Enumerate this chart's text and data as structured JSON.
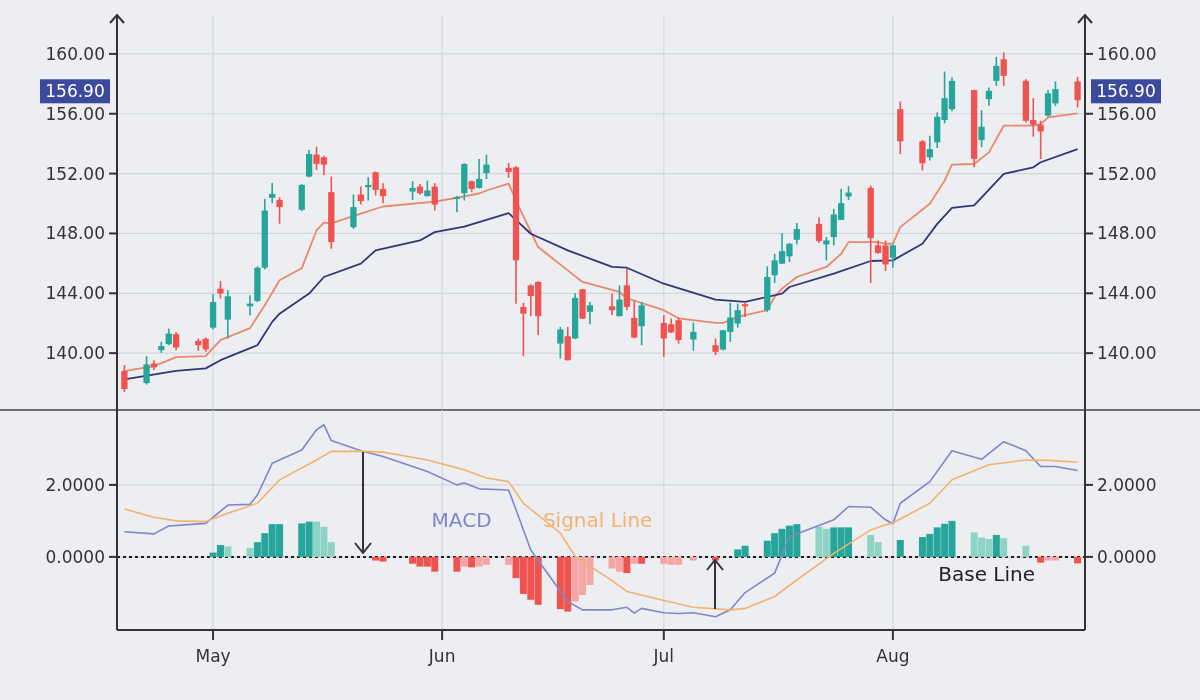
{
  "chart_data": [
    {
      "type": "candlestick",
      "tick_labels": "y",
      "grid": true,
      "xlim": [
        "--04-18",
        "--08-27"
      ],
      "xticks": [
        {
          "value": "--05-01",
          "label": null
        },
        {
          "value": "--06-01",
          "label": null
        },
        {
          "value": "--07-01",
          "label": null
        },
        {
          "value": "--08-01",
          "label": null
        }
      ],
      "ylim": [
        136.2,
        162.6
      ],
      "yticks": [
        {
          "value": 140,
          "label": "140.00"
        },
        {
          "value": 144,
          "label": "144.00"
        },
        {
          "value": 148,
          "label": "148.00"
        },
        {
          "value": 152,
          "label": "152.00"
        },
        {
          "value": 156,
          "label": "156.00"
        },
        {
          "value": 160,
          "label": "160.00"
        }
      ],
      "y2lim": [
        136.2,
        162.6
      ],
      "y2ticks": [
        {
          "value": 140,
          "label": "140.00"
        },
        {
          "value": 144,
          "label": "144.00"
        },
        {
          "value": 148,
          "label": "148.00"
        },
        {
          "value": 152,
          "label": "152.00"
        },
        {
          "value": 156,
          "label": "156.00"
        },
        {
          "value": 160,
          "label": "160.00"
        }
      ],
      "x": [
        "--04-19",
        "--04-22",
        "--04-23",
        "--04-24",
        "--04-25",
        "--04-26",
        "--04-29",
        "--04-30",
        "--05-01",
        "--05-02",
        "--05-03",
        "--05-06",
        "--05-07",
        "--05-08",
        "--05-09",
        "--05-10",
        "--05-13",
        "--05-14",
        "--05-15",
        "--05-16",
        "--05-17",
        "--05-20",
        "--05-21",
        "--05-22",
        "--05-23",
        "--05-24",
        "--05-28",
        "--05-29",
        "--05-30",
        "--05-31",
        "--06-03",
        "--06-04",
        "--06-05",
        "--06-06",
        "--06-07",
        "--06-10",
        "--06-11",
        "--06-12",
        "--06-13",
        "--06-14",
        "--06-17",
        "--06-18",
        "--06-19",
        "--06-20",
        "--06-21",
        "--06-24",
        "--06-25",
        "--06-26",
        "--06-27",
        "--06-28",
        "--07-01",
        "--07-02",
        "--07-03",
        "--07-05",
        "--07-08",
        "--07-09",
        "--07-10",
        "--07-11",
        "--07-12",
        "--07-15",
        "--07-16",
        "--07-17",
        "--07-18",
        "--07-19",
        "--07-22",
        "--07-23",
        "--07-24",
        "--07-25",
        "--07-26",
        "--07-29",
        "--07-30",
        "--07-31",
        "--08-01",
        "--08-02",
        "--08-05",
        "--08-06",
        "--08-07",
        "--08-08",
        "--08-09",
        "--08-12",
        "--08-13",
        "--08-14",
        "--08-15",
        "--08-16",
        "--08-19",
        "--08-20",
        "--08-21",
        "--08-22",
        "--08-23",
        "--08-26"
      ],
      "ohlc": [
        [
          138.8,
          139.2,
          137.4,
          137.6
        ],
        [
          138.0,
          139.8,
          137.9,
          139.25
        ],
        [
          139.3,
          139.53,
          138.87,
          139.05
        ],
        [
          140.2,
          140.76,
          140.02,
          140.47
        ],
        [
          140.6,
          141.64,
          140.53,
          141.31
        ],
        [
          141.27,
          141.42,
          140.2,
          140.38
        ],
        [
          140.82,
          140.98,
          140.16,
          140.53
        ],
        [
          140.96,
          141.05,
          140.09,
          140.25
        ],
        [
          141.7,
          143.93,
          141.6,
          143.42
        ],
        [
          144.31,
          144.82,
          143.64,
          143.98
        ],
        [
          142.24,
          144.2,
          140.98,
          143.8
        ],
        [
          143.13,
          143.87,
          142.53,
          143.31
        ],
        [
          143.49,
          145.8,
          143.4,
          145.71
        ],
        [
          145.71,
          150.31,
          145.6,
          149.53
        ],
        [
          150.38,
          151.38,
          150.02,
          150.64
        ],
        [
          150.24,
          150.42,
          148.65,
          149.76
        ],
        [
          149.58,
          151.3,
          149.49,
          151.24
        ],
        [
          151.8,
          153.58,
          151.75,
          153.31
        ],
        [
          153.27,
          153.8,
          152.24,
          152.65
        ],
        [
          153.09,
          153.2,
          151.9,
          152.6
        ],
        [
          150.76,
          151.8,
          146.98,
          147.42
        ],
        [
          148.42,
          150.6,
          148.3,
          149.76
        ],
        [
          150.6,
          151.13,
          149.93,
          150.16
        ],
        [
          151.09,
          151.76,
          150.2,
          151.24
        ],
        [
          152.09,
          152.15,
          150.53,
          150.91
        ],
        [
          150.98,
          151.36,
          150.02,
          150.49
        ],
        [
          150.8,
          151.49,
          150.24,
          151.04
        ],
        [
          151.13,
          151.31,
          150.58,
          150.69
        ],
        [
          150.49,
          151.53,
          150.47,
          150.87
        ],
        [
          151.13,
          151.36,
          149.53,
          149.93
        ],
        [
          150.31,
          150.5,
          149.42,
          150.44
        ],
        [
          150.69,
          152.7,
          150.2,
          152.64
        ],
        [
          151.49,
          151.53,
          150.76,
          150.98
        ],
        [
          151.04,
          152.98,
          151.0,
          151.64
        ],
        [
          152.04,
          153.27,
          151.64,
          152.6
        ],
        [
          152.38,
          152.71,
          151.71,
          152.11
        ],
        [
          152.42,
          152.5,
          143.3,
          146.2
        ],
        [
          143.09,
          143.36,
          139.8,
          142.64
        ],
        [
          144.53,
          144.6,
          142.47,
          143.82
        ],
        [
          144.76,
          144.8,
          141.2,
          142.47
        ],
        [
          140.64,
          141.76,
          139.64,
          141.58
        ],
        [
          141.13,
          141.76,
          139.5,
          139.53
        ],
        [
          140.98,
          144.0,
          140.95,
          143.69
        ],
        [
          144.27,
          144.3,
          142.28,
          142.31
        ],
        [
          142.76,
          143.42,
          141.93,
          143.2
        ],
        [
          143.13,
          143.98,
          142.53,
          142.87
        ],
        [
          142.47,
          144.53,
          142.45,
          143.58
        ],
        [
          144.53,
          145.64,
          142.87,
          143.09
        ],
        [
          142.36,
          143.53,
          141.0,
          141.04
        ],
        [
          141.8,
          143.42,
          140.53,
          143.2
        ],
        [
          142.02,
          142.53,
          139.76,
          140.98
        ],
        [
          141.93,
          142.31,
          141.35,
          141.38
        ],
        [
          142.2,
          142.38,
          140.64,
          140.87
        ],
        [
          140.91,
          142.04,
          140.16,
          141.42
        ],
        [
          140.53,
          140.98,
          139.87,
          140.09
        ],
        [
          140.24,
          141.55,
          140.2,
          141.53
        ],
        [
          141.42,
          143.36,
          140.76,
          142.38
        ],
        [
          141.98,
          143.31,
          141.71,
          142.87
        ],
        [
          143.27,
          143.42,
          142.42,
          143.13
        ],
        [
          142.87,
          145.8,
          142.76,
          145.09
        ],
        [
          145.2,
          146.64,
          144.69,
          146.2
        ],
        [
          145.98,
          148.02,
          145.95,
          146.82
        ],
        [
          146.47,
          147.35,
          146.09,
          147.31
        ],
        [
          147.58,
          148.69,
          147.27,
          148.29
        ],
        [
          148.64,
          149.09,
          147.36,
          147.49
        ],
        [
          147.27,
          147.76,
          146.2,
          147.53
        ],
        [
          147.76,
          149.64,
          147.2,
          149.27
        ],
        [
          148.91,
          150.98,
          148.9,
          150.02
        ],
        [
          150.47,
          151.16,
          150.24,
          150.73
        ],
        [
          151.04,
          151.2,
          144.69,
          147.69
        ],
        [
          147.2,
          147.53,
          146.64,
          146.69
        ],
        [
          147.2,
          147.53,
          145.49,
          145.93
        ],
        [
          146.38,
          147.25,
          145.71,
          147.2
        ],
        [
          156.31,
          156.82,
          153.31,
          154.16
        ],
        [
          154.16,
          154.24,
          152.2,
          152.69
        ],
        [
          153.09,
          154.53,
          152.87,
          153.64
        ],
        [
          154.09,
          156.09,
          153.71,
          155.8
        ],
        [
          155.58,
          158.82,
          155.36,
          157.04
        ],
        [
          156.31,
          158.42,
          156.16,
          158.2
        ],
        [
          157.58,
          157.6,
          152.42,
          152.98
        ],
        [
          154.24,
          156.24,
          153.76,
          155.13
        ],
        [
          156.98,
          157.76,
          156.53,
          157.53
        ],
        [
          158.2,
          159.8,
          157.87,
          159.2
        ],
        [
          159.64,
          160.09,
          157.87,
          158.53
        ],
        [
          158.2,
          158.31,
          155.42,
          155.53
        ],
        [
          155.58,
          157.04,
          154.47,
          155.27
        ],
        [
          155.27,
          155.53,
          152.98,
          154.82
        ],
        [
          155.87,
          157.58,
          155.8,
          157.36
        ],
        [
          156.69,
          158.16,
          156.53,
          157.64
        ],
        [
          158.16,
          158.47,
          156.42,
          156.9
        ]
      ],
      "series": [
        {
          "type": "line",
          "color": "#e8896b",
          "x": [
            "--04-19",
            "--04-23",
            "--04-26",
            "--04-30",
            "--05-02",
            "--05-06",
            "--05-08",
            "--05-10",
            "--05-13",
            "--05-15",
            "--05-16",
            "--05-17",
            "--05-21",
            "--05-24",
            "--05-31",
            "--06-04",
            "--06-06",
            "--06-07",
            "--06-10",
            "--06-11",
            "--06-14",
            "--06-18",
            "--06-20",
            "--06-25",
            "--06-26",
            "--07-01",
            "--07-03",
            "--07-08",
            "--07-09",
            "--07-11",
            "--07-15",
            "--07-16",
            "--07-17",
            "--07-19",
            "--07-23",
            "--07-25",
            "--07-26",
            "--07-30",
            "--07-31",
            "--08-01",
            "--08-02",
            "--08-06",
            "--08-08",
            "--08-09",
            "--08-12",
            "--08-14",
            "--08-15",
            "--08-16",
            "--08-20",
            "--08-21",
            "--08-22",
            "--08-26"
          ],
          "values": [
            138.8,
            139.13,
            139.73,
            139.8,
            140.87,
            141.67,
            143.2,
            144.87,
            145.67,
            148.2,
            148.73,
            148.67,
            149.33,
            149.8,
            150.13,
            150.47,
            150.67,
            150.87,
            151.33,
            150.2,
            147.09,
            145.53,
            144.76,
            144.09,
            143.67,
            142.87,
            142.33,
            142.02,
            142.02,
            142.42,
            142.87,
            143.76,
            144.31,
            145.09,
            145.76,
            146.64,
            147.42,
            147.42,
            147.31,
            147.31,
            148.42,
            149.98,
            151.53,
            152.6,
            152.64,
            153.42,
            154.31,
            155.2,
            155.2,
            155.31,
            155.76,
            156.02
          ]
        },
        {
          "type": "line",
          "color": "#2f3778",
          "x": [
            "--04-19",
            "--04-26",
            "--04-30",
            "--05-02",
            "--05-07",
            "--05-09",
            "--05-10",
            "--05-14",
            "--05-16",
            "--05-21",
            "--05-23",
            "--05-29",
            "--05-31",
            "--06-04",
            "--06-10",
            "--06-13",
            "--06-18",
            "--06-24",
            "--06-26",
            "--07-01",
            "--07-08",
            "--07-12",
            "--07-17",
            "--07-18",
            "--07-24",
            "--07-29",
            "--08-01",
            "--08-05",
            "--08-07",
            "--08-09",
            "--08-12",
            "--08-16",
            "--08-20",
            "--08-21",
            "--08-26"
          ],
          "values": [
            138.25,
            138.82,
            138.98,
            139.53,
            140.53,
            142.09,
            142.64,
            143.98,
            145.09,
            145.98,
            146.87,
            147.53,
            148.09,
            148.45,
            149.36,
            147.98,
            146.87,
            145.76,
            145.71,
            144.64,
            143.58,
            143.42,
            143.98,
            144.42,
            145.31,
            146.16,
            146.2,
            147.31,
            148.64,
            149.71,
            149.87,
            151.98,
            152.42,
            152.76,
            153.64
          ]
        }
      ],
      "annotations": [
        "156.90",
        "156.90"
      ]
    },
    {
      "type": "bar",
      "grid": true,
      "xlim": [
        "--04-18",
        "--08-27"
      ],
      "xticks": [
        {
          "value": "--05-01",
          "label": "May"
        },
        {
          "value": "--06-01",
          "label": "Jun"
        },
        {
          "value": "--07-01",
          "label": "Jul"
        },
        {
          "value": "--08-01",
          "label": "Aug"
        }
      ],
      "ylim": [
        -2.03,
        4.08
      ],
      "yticks": [
        {
          "value": 0,
          "label": "0.0000"
        },
        {
          "value": 2,
          "label": "2.0000"
        }
      ],
      "y2lim": [
        -2.03,
        4.08
      ],
      "y2ticks": [
        {
          "value": 0,
          "label": "0.0000"
        },
        {
          "value": 2,
          "label": "2.0000"
        }
      ],
      "series": [
        {
          "type": "bar",
          "x": [
            "--05-01",
            "--05-02",
            "--05-03",
            "--05-06",
            "--05-07",
            "--05-08",
            "--05-09",
            "--05-10",
            "--05-13",
            "--05-14",
            "--05-15",
            "--05-16",
            "--05-17",
            "--05-23",
            "--05-24",
            "--05-28",
            "--05-29",
            "--05-30",
            "--05-31",
            "--06-03",
            "--06-04",
            "--06-05",
            "--06-06",
            "--06-07",
            "--06-10",
            "--06-11",
            "--06-12",
            "--06-13",
            "--06-14",
            "--06-17",
            "--06-18",
            "--06-19",
            "--06-20",
            "--06-21",
            "--06-24",
            "--06-25",
            "--06-26",
            "--06-27",
            "--06-28",
            "--07-01",
            "--07-02",
            "--07-03",
            "--07-05",
            "--07-08",
            "--07-11",
            "--07-12",
            "--07-15",
            "--07-16",
            "--07-17",
            "--07-18",
            "--07-19",
            "--07-22",
            "--07-23",
            "--07-24",
            "--07-25",
            "--07-26",
            "--07-29",
            "--07-30",
            "--08-02",
            "--08-05",
            "--08-06",
            "--08-07",
            "--08-08",
            "--08-09",
            "--08-12",
            "--08-13",
            "--08-14",
            "--08-15",
            "--08-16",
            "--08-19",
            "--08-21",
            "--08-22",
            "--08-23",
            "--08-26"
          ],
          "values": [
            0.12,
            0.33,
            0.29,
            0.25,
            0.41,
            0.66,
            0.91,
            0.91,
            0.93,
            0.98,
            0.98,
            0.84,
            0.41,
            -0.1,
            -0.13,
            -0.19,
            -0.27,
            -0.27,
            -0.41,
            -0.41,
            -0.27,
            -0.29,
            -0.27,
            -0.22,
            -0.22,
            -0.59,
            -1.03,
            -1.19,
            -1.33,
            -1.45,
            -1.52,
            -1.24,
            -1.06,
            -0.78,
            -0.32,
            -0.41,
            -0.45,
            -0.19,
            -0.19,
            -0.19,
            -0.22,
            -0.22,
            -0.1,
            -0.1,
            0.21,
            0.31,
            0.45,
            0.66,
            0.78,
            0.87,
            0.91,
            0.84,
            0.78,
            0.82,
            0.82,
            0.82,
            0.61,
            0.41,
            0.47,
            0.55,
            0.64,
            0.82,
            0.92,
            1.0,
            0.68,
            0.54,
            0.5,
            0.61,
            0.52,
            0.31,
            -0.16,
            -0.1,
            -0.1,
            -0.18
          ],
          "colors": [
            "#26a69a",
            "#26a69a",
            "#8fd3c7",
            "#8fd3c7",
            "#26a69a",
            "#26a69a",
            "#26a69a",
            "#26a69a",
            "#26a69a",
            "#26a69a",
            "#8fd3c7",
            "#8fd3c7",
            "#8fd3c7",
            "#ef5350",
            "#ef5350",
            "#ef5350",
            "#ef5350",
            "#ef5350",
            "#ef5350",
            "#ef5350",
            "#f5a5a5",
            "#ef5350",
            "#f5a5a5",
            "#f5a5a5",
            "#f5a5a5",
            "#ef5350",
            "#ef5350",
            "#ef5350",
            "#ef5350",
            "#ef5350",
            "#ef5350",
            "#f5a5a5",
            "#f5a5a5",
            "#f5a5a5",
            "#f5a5a5",
            "#f5a5a5",
            "#ef5350",
            "#f5a5a5",
            "#ef5350",
            "#f5a5a5",
            "#f5a5a5",
            "#f5a5a5",
            "#f5a5a5",
            "#ef5350",
            "#26a69a",
            "#26a69a",
            "#26a69a",
            "#26a69a",
            "#26a69a",
            "#26a69a",
            "#26a69a",
            "#8fd3c7",
            "#8fd3c7",
            "#26a69a",
            "#26a69a",
            "#26a69a",
            "#8fd3c7",
            "#8fd3c7",
            "#26a69a",
            "#26a69a",
            "#26a69a",
            "#26a69a",
            "#26a69a",
            "#26a69a",
            "#8fd3c7",
            "#8fd3c7",
            "#8fd3c7",
            "#26a69a",
            "#8fd3c7",
            "#8fd3c7",
            "#ef5350",
            "#f5a5a5",
            "#f5a5a5",
            "#ef5350"
          ]
        },
        {
          "type": "line",
          "name": "MACD",
          "color": "#7f86c9",
          "x": [
            "--04-19",
            "--04-23",
            "--04-25",
            "--04-30",
            "--05-03",
            "--05-06",
            "--05-07",
            "--05-09",
            "--05-13",
            "--05-15",
            "--05-16",
            "--05-17",
            "--05-21",
            "--05-24",
            "--05-30",
            "--06-03",
            "--06-04",
            "--06-06",
            "--06-10",
            "--06-11",
            "--06-13",
            "--06-18",
            "--06-20",
            "--06-24",
            "--06-26",
            "--06-27",
            "--06-28",
            "--07-01",
            "--07-03",
            "--07-05",
            "--07-08",
            "--07-10",
            "--07-12",
            "--07-16",
            "--07-18",
            "--07-24",
            "--07-26",
            "--07-29",
            "--07-31",
            "--08-01",
            "--08-02",
            "--08-06",
            "--08-09",
            "--08-13",
            "--08-16",
            "--08-19",
            "--08-21",
            "--08-23",
            "--08-26"
          ],
          "values": [
            0.7,
            0.64,
            0.86,
            0.93,
            1.44,
            1.46,
            1.72,
            2.6,
            2.97,
            3.53,
            3.67,
            3.23,
            2.95,
            2.79,
            2.37,
            2.0,
            2.05,
            1.89,
            1.86,
            1.31,
            0.19,
            -1.24,
            -1.47,
            -1.47,
            -1.4,
            -1.56,
            -1.43,
            -1.55,
            -1.57,
            -1.55,
            -1.66,
            -1.47,
            -0.99,
            -0.45,
            0.56,
            1.03,
            1.4,
            1.38,
            1.03,
            0.92,
            1.49,
            2.09,
            2.95,
            2.71,
            3.2,
            2.95,
            2.51,
            2.51,
            2.4
          ]
        },
        {
          "type": "line",
          "name": "Signal Line",
          "color": "#f4b26e",
          "x": [
            "--04-19",
            "--04-23",
            "--04-26",
            "--04-30",
            "--05-03",
            "--05-07",
            "--05-10",
            "--05-15",
            "--05-17",
            "--05-22",
            "--05-24",
            "--05-30",
            "--06-04",
            "--06-07",
            "--06-10",
            "--06-12",
            "--06-17",
            "--06-19",
            "--06-24",
            "--06-26",
            "--07-01",
            "--07-05",
            "--07-10",
            "--07-12",
            "--07-16",
            "--07-19",
            "--07-24",
            "--07-29",
            "--07-31",
            "--08-01",
            "--08-06",
            "--08-09",
            "--08-14",
            "--08-19",
            "--08-22",
            "--08-26"
          ],
          "values": [
            1.33,
            1.1,
            1.0,
            0.98,
            1.21,
            1.49,
            2.14,
            2.69,
            2.93,
            2.93,
            2.91,
            2.69,
            2.42,
            2.19,
            2.09,
            1.49,
            0.66,
            0.01,
            -0.66,
            -0.96,
            -1.21,
            -1.4,
            -1.47,
            -1.43,
            -1.1,
            -0.64,
            0.1,
            0.75,
            0.89,
            0.94,
            1.49,
            2.14,
            2.56,
            2.69,
            2.68,
            2.63
          ]
        }
      ],
      "ref_lines": [
        {
          "axis": "y",
          "value": 0,
          "label": "Base Line",
          "color": "#222222",
          "line_style": "dotted"
        }
      ]
    }
  ]
}
